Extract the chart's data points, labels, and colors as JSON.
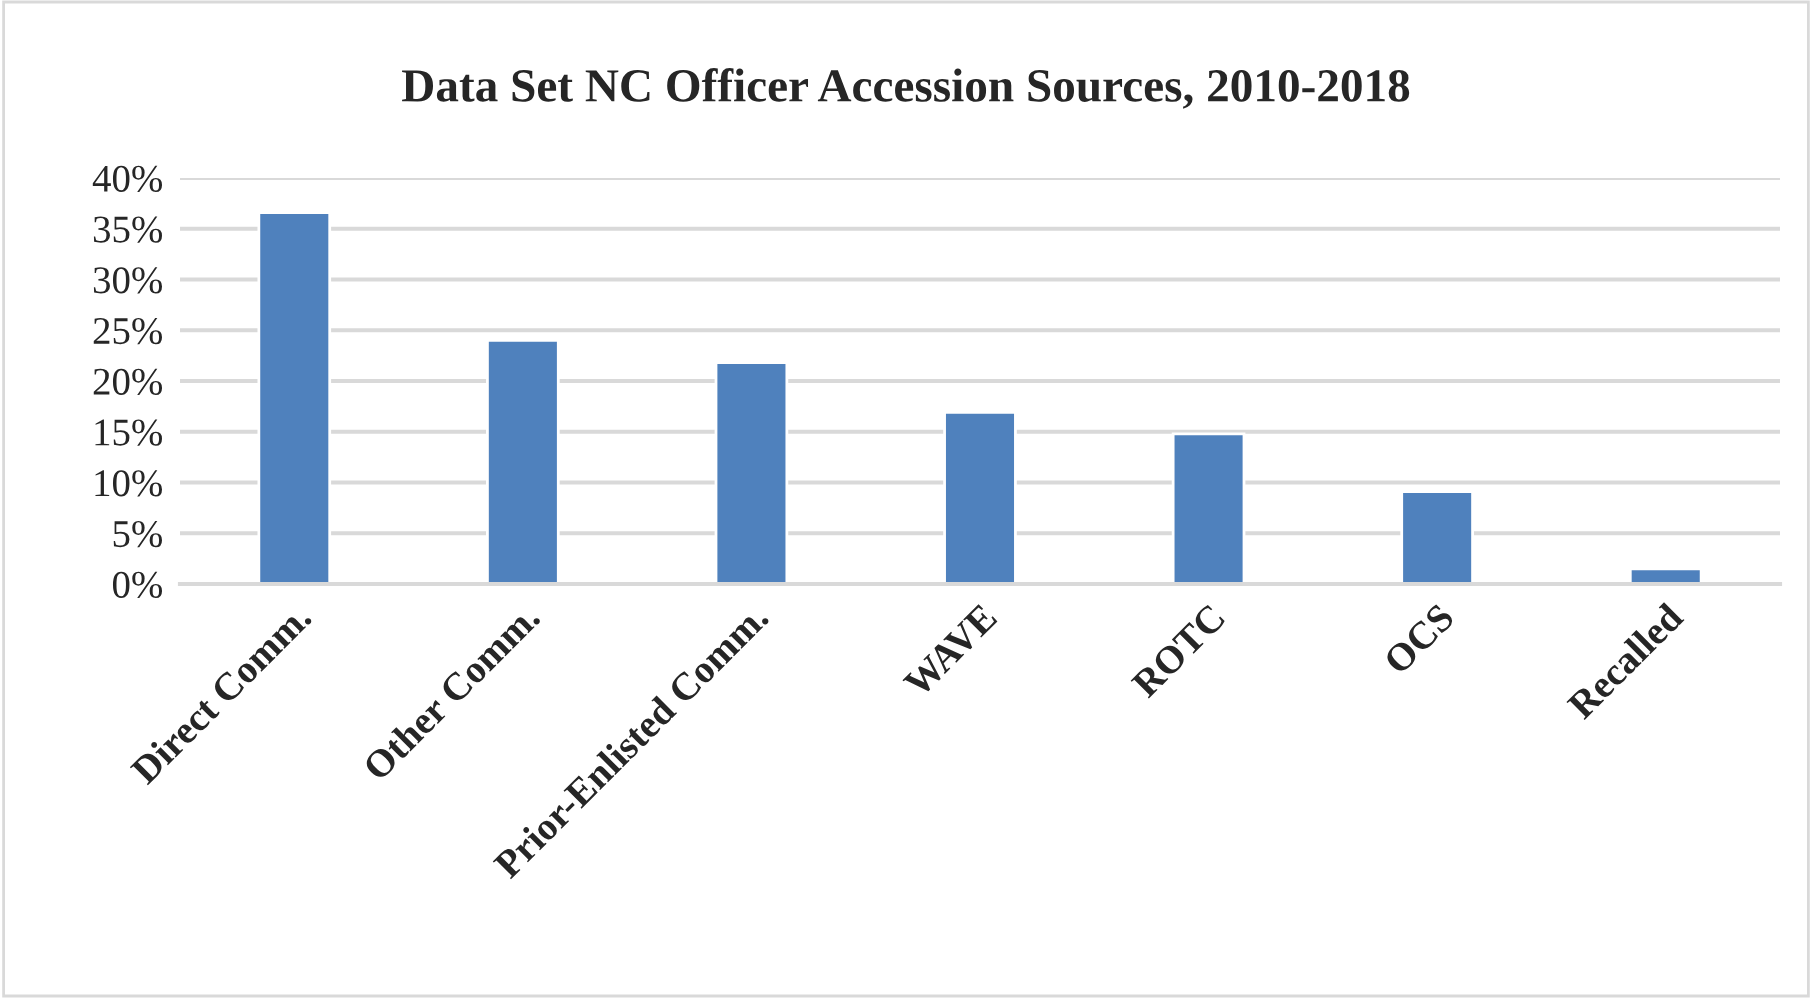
{
  "chart_data": {
    "type": "bar",
    "title": "Data Set NC Officer Accession Sources, 2010-2018",
    "categories": [
      "Direct Comm.",
      "Other Comm.",
      "Prior-Enlisted Comm.",
      "WAVE",
      "ROTC",
      "OCS",
      "Recalled"
    ],
    "values": [
      36.6,
      24.0,
      21.8,
      16.9,
      14.8,
      9.1,
      1.5
    ],
    "color": "#4f81bd",
    "ylim": [
      0,
      40
    ],
    "yticks": [
      {
        "value": 0,
        "label": "0%"
      },
      {
        "value": 5,
        "label": "5%"
      },
      {
        "value": 10,
        "label": "10%"
      },
      {
        "value": 15,
        "label": "15%"
      },
      {
        "value": 20,
        "label": "20%"
      },
      {
        "value": 25,
        "label": "25%"
      },
      {
        "value": 30,
        "label": "30%"
      },
      {
        "value": 35,
        "label": "35%"
      },
      {
        "value": 40,
        "label": "40%"
      }
    ],
    "grid": "y",
    "legend": false
  }
}
